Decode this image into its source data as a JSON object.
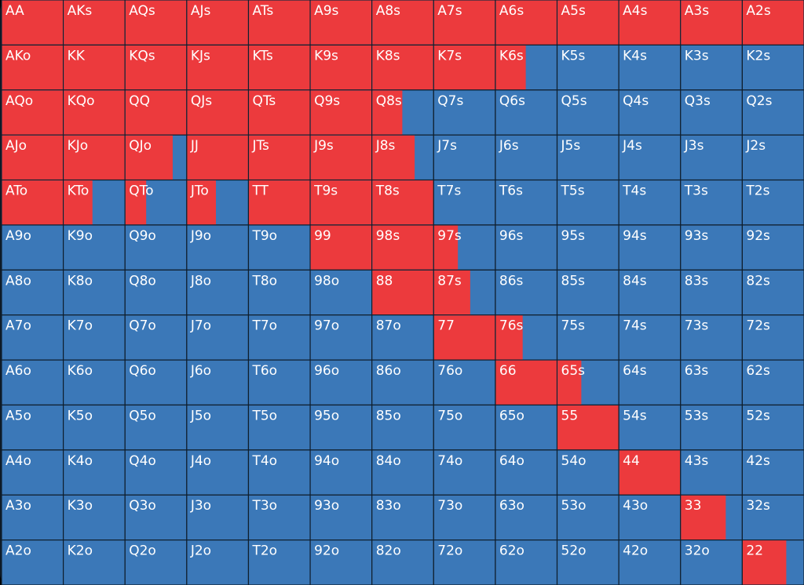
{
  "grid": {
    "fold_color": "#3b78b8",
    "raise_color": "#ec3a3d",
    "labels": [
      [
        "AA",
        "AKs",
        "AQs",
        "AJs",
        "ATs",
        "A9s",
        "A8s",
        "A7s",
        "A6s",
        "A5s",
        "A4s",
        "A3s",
        "A2s"
      ],
      [
        "AKo",
        "KK",
        "KQs",
        "KJs",
        "KTs",
        "K9s",
        "K8s",
        "K7s",
        "K6s",
        "K5s",
        "K4s",
        "K3s",
        "K2s"
      ],
      [
        "AQo",
        "KQo",
        "QQ",
        "QJs",
        "QTs",
        "Q9s",
        "Q8s",
        "Q7s",
        "Q6s",
        "Q5s",
        "Q4s",
        "Q3s",
        "Q2s"
      ],
      [
        "AJo",
        "KJo",
        "QJo",
        "JJ",
        "JTs",
        "J9s",
        "J8s",
        "J7s",
        "J6s",
        "J5s",
        "J4s",
        "J3s",
        "J2s"
      ],
      [
        "ATo",
        "KTo",
        "QTo",
        "JTo",
        "TT",
        "T9s",
        "T8s",
        "T7s",
        "T6s",
        "T5s",
        "T4s",
        "T3s",
        "T2s"
      ],
      [
        "A9o",
        "K9o",
        "Q9o",
        "J9o",
        "T9o",
        "99",
        "98s",
        "97s",
        "96s",
        "95s",
        "94s",
        "93s",
        "92s"
      ],
      [
        "A8o",
        "K8o",
        "Q8o",
        "J8o",
        "T8o",
        "98o",
        "88",
        "87s",
        "86s",
        "85s",
        "84s",
        "83s",
        "82s"
      ],
      [
        "A7o",
        "K7o",
        "Q7o",
        "J7o",
        "T7o",
        "97o",
        "87o",
        "77",
        "76s",
        "75s",
        "74s",
        "73s",
        "72s"
      ],
      [
        "A6o",
        "K6o",
        "Q6o",
        "J6o",
        "T6o",
        "96o",
        "86o",
        "76o",
        "66",
        "65s",
        "64s",
        "63s",
        "62s"
      ],
      [
        "A5o",
        "K5o",
        "Q5o",
        "J5o",
        "T5o",
        "95o",
        "85o",
        "75o",
        "65o",
        "55",
        "54s",
        "53s",
        "52s"
      ],
      [
        "A4o",
        "K4o",
        "Q4o",
        "J4o",
        "T4o",
        "94o",
        "84o",
        "74o",
        "64o",
        "54o",
        "44",
        "43s",
        "42s"
      ],
      [
        "A3o",
        "K3o",
        "Q3o",
        "J3o",
        "T3o",
        "93o",
        "83o",
        "73o",
        "63o",
        "53o",
        "43o",
        "33",
        "32s"
      ],
      [
        "A2o",
        "K2o",
        "Q2o",
        "J2o",
        "T2o",
        "92o",
        "82o",
        "72o",
        "62o",
        "52o",
        "42o",
        "32o",
        "22"
      ]
    ],
    "raise_share": [
      [
        100,
        100,
        100,
        100,
        100,
        100,
        100,
        100,
        100,
        100,
        100,
        100,
        100
      ],
      [
        100,
        100,
        100,
        100,
        100,
        100,
        100,
        100,
        50,
        0,
        0,
        0,
        0
      ],
      [
        100,
        100,
        100,
        100,
        100,
        100,
        50,
        0,
        0,
        0,
        0,
        0,
        0
      ],
      [
        100,
        100,
        78,
        100,
        100,
        100,
        70,
        0,
        0,
        0,
        0,
        0,
        0
      ],
      [
        100,
        48,
        35,
        48,
        100,
        100,
        100,
        0,
        0,
        0,
        0,
        0,
        0
      ],
      [
        0,
        0,
        0,
        0,
        0,
        100,
        100,
        40,
        0,
        0,
        0,
        0,
        0
      ],
      [
        0,
        0,
        0,
        0,
        0,
        0,
        100,
        60,
        0,
        0,
        0,
        0,
        0
      ],
      [
        0,
        0,
        0,
        0,
        0,
        0,
        0,
        100,
        45,
        0,
        0,
        0,
        0
      ],
      [
        0,
        0,
        0,
        0,
        0,
        0,
        0,
        0,
        100,
        40,
        0,
        0,
        0
      ],
      [
        0,
        0,
        0,
        0,
        0,
        0,
        0,
        0,
        0,
        100,
        0,
        0,
        0
      ],
      [
        0,
        0,
        0,
        0,
        0,
        0,
        0,
        0,
        0,
        0,
        100,
        0,
        0
      ],
      [
        0,
        0,
        0,
        0,
        0,
        0,
        0,
        0,
        0,
        0,
        0,
        74,
        0
      ],
      [
        0,
        0,
        0,
        0,
        0,
        0,
        0,
        0,
        0,
        0,
        0,
        0,
        72
      ]
    ]
  }
}
